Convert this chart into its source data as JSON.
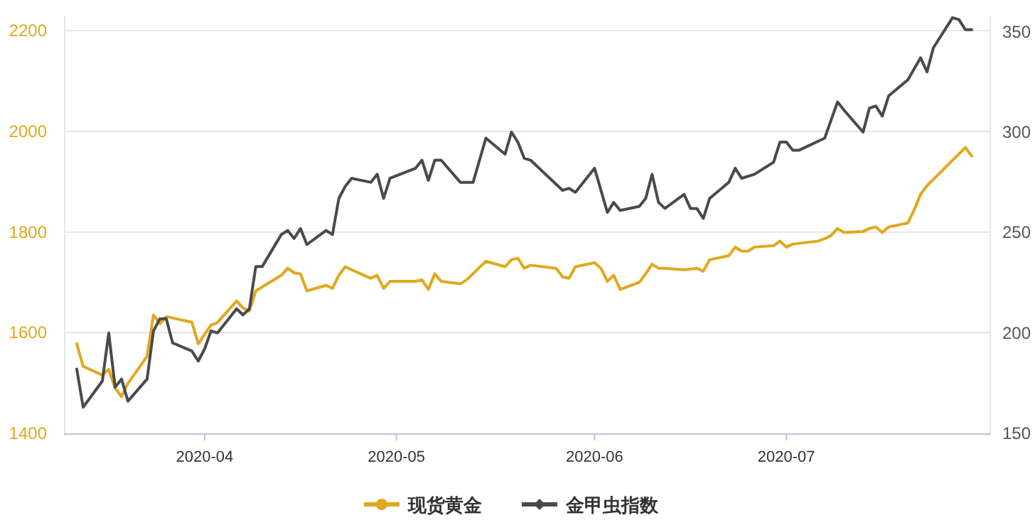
{
  "chart_data": {
    "type": "line",
    "legend": "bottom",
    "grid": "y",
    "xlim": [
      "2020-03-10",
      "2020-08-02"
    ],
    "xticks": [
      "2020-04",
      "2020-05",
      "2020-06",
      "2020-07"
    ],
    "ylim": [
      1400,
      2230
    ],
    "yticks": [
      1400,
      1600,
      1800,
      2000,
      2200
    ],
    "y2lim": [
      150,
      358
    ],
    "y2ticks": [
      150,
      200,
      250,
      300,
      350
    ],
    "series": [
      {
        "name": "现货黄金",
        "color": "#e0a81c",
        "x": [
          "2020-03-12",
          "2020-03-13",
          "2020-03-16",
          "2020-03-17",
          "2020-03-18",
          "2020-03-19",
          "2020-03-20",
          "2020-03-23",
          "2020-03-24",
          "2020-03-25",
          "2020-03-26",
          "2020-03-30",
          "2020-03-31",
          "2020-04-02",
          "2020-04-03",
          "2020-04-06",
          "2020-04-07",
          "2020-04-08",
          "2020-04-09",
          "2020-04-13",
          "2020-04-14",
          "2020-04-15",
          "2020-04-16",
          "2020-04-17",
          "2020-04-20",
          "2020-04-21",
          "2020-04-22",
          "2020-04-23",
          "2020-04-24",
          "2020-04-27",
          "2020-04-28",
          "2020-04-29",
          "2020-04-30",
          "2020-05-04",
          "2020-05-05",
          "2020-05-06",
          "2020-05-07",
          "2020-05-08",
          "2020-05-11",
          "2020-05-12",
          "2020-05-15",
          "2020-05-18",
          "2020-05-19",
          "2020-05-20",
          "2020-05-21",
          "2020-05-22",
          "2020-05-26",
          "2020-05-27",
          "2020-05-28",
          "2020-05-29",
          "2020-06-01",
          "2020-06-02",
          "2020-06-03",
          "2020-06-04",
          "2020-06-05",
          "2020-06-08",
          "2020-06-09",
          "2020-06-10",
          "2020-06-11",
          "2020-06-12",
          "2020-06-15",
          "2020-06-17",
          "2020-06-18",
          "2020-06-19",
          "2020-06-22",
          "2020-06-23",
          "2020-06-24",
          "2020-06-25",
          "2020-06-26",
          "2020-06-29",
          "2020-06-30",
          "2020-07-01",
          "2020-07-02",
          "2020-07-06",
          "2020-07-07",
          "2020-07-08",
          "2020-07-09",
          "2020-07-10",
          "2020-07-13",
          "2020-07-14",
          "2020-07-15",
          "2020-07-16",
          "2020-07-17",
          "2020-07-20",
          "2020-07-21",
          "2020-07-22",
          "2020-07-23",
          "2020-07-29",
          "2020-07-30"
        ],
        "values": [
          1578,
          1533,
          1516,
          1527,
          1490,
          1473,
          1499,
          1553,
          1635,
          1618,
          1632,
          1621,
          1578,
          1615,
          1620,
          1663,
          1649,
          1643,
          1683,
          1714,
          1728,
          1719,
          1717,
          1683,
          1694,
          1688,
          1714,
          1731,
          1725,
          1708,
          1714,
          1688,
          1702,
          1702,
          1705,
          1686,
          1717,
          1702,
          1697,
          1705,
          1742,
          1731,
          1745,
          1748,
          1728,
          1734,
          1728,
          1711,
          1708,
          1731,
          1739,
          1728,
          1702,
          1714,
          1686,
          1700,
          1717,
          1736,
          1728,
          1728,
          1725,
          1728,
          1722,
          1745,
          1753,
          1770,
          1762,
          1762,
          1770,
          1773,
          1782,
          1770,
          1776,
          1782,
          1787,
          1793,
          1807,
          1799,
          1801,
          1807,
          1810,
          1799,
          1810,
          1818,
          1844,
          1875,
          1892,
          1968,
          1951
        ]
      },
      {
        "name": "金甲虫指数",
        "color": "#4a4a4a",
        "axis": "y2",
        "x": [
          "2020-03-12",
          "2020-03-13",
          "2020-03-16",
          "2020-03-17",
          "2020-03-18",
          "2020-03-19",
          "2020-03-20",
          "2020-03-23",
          "2020-03-24",
          "2020-03-25",
          "2020-03-26",
          "2020-03-27",
          "2020-03-30",
          "2020-03-31",
          "2020-04-01",
          "2020-04-02",
          "2020-04-03",
          "2020-04-06",
          "2020-04-07",
          "2020-04-08",
          "2020-04-09",
          "2020-04-10",
          "2020-04-13",
          "2020-04-14",
          "2020-04-15",
          "2020-04-16",
          "2020-04-17",
          "2020-04-20",
          "2020-04-21",
          "2020-04-22",
          "2020-04-23",
          "2020-04-24",
          "2020-04-27",
          "2020-04-28",
          "2020-04-29",
          "2020-04-30",
          "2020-05-04",
          "2020-05-05",
          "2020-05-06",
          "2020-05-07",
          "2020-05-08",
          "2020-05-11",
          "2020-05-13",
          "2020-05-15",
          "2020-05-18",
          "2020-05-19",
          "2020-05-20",
          "2020-05-21",
          "2020-05-22",
          "2020-05-27",
          "2020-05-28",
          "2020-05-29",
          "2020-06-01",
          "2020-06-03",
          "2020-06-04",
          "2020-06-05",
          "2020-06-08",
          "2020-06-09",
          "2020-06-10",
          "2020-06-11",
          "2020-06-12",
          "2020-06-15",
          "2020-06-16",
          "2020-06-17",
          "2020-06-18",
          "2020-06-19",
          "2020-06-22",
          "2020-06-23",
          "2020-06-24",
          "2020-06-26",
          "2020-06-29",
          "2020-06-30",
          "2020-07-01",
          "2020-07-02",
          "2020-07-03",
          "2020-07-07",
          "2020-07-09",
          "2020-07-10",
          "2020-07-13",
          "2020-07-14",
          "2020-07-15",
          "2020-07-16",
          "2020-07-17",
          "2020-07-20",
          "2020-07-22",
          "2020-07-23",
          "2020-07-24",
          "2020-07-27",
          "2020-07-28",
          "2020-07-29",
          "2020-07-30"
        ],
        "values": [
          182,
          163,
          176,
          200,
          173,
          177,
          166,
          177,
          201,
          207,
          207,
          195,
          191,
          186,
          192,
          201,
          200,
          212,
          209,
          212,
          233,
          233,
          249,
          251,
          247,
          252,
          244,
          251,
          249,
          267,
          273,
          277,
          275,
          279,
          267,
          277,
          282,
          286,
          276,
          286,
          286,
          275,
          275,
          297,
          289,
          300,
          295,
          287,
          286,
          271,
          272,
          270,
          282,
          260,
          265,
          261,
          263,
          267,
          279,
          265,
          262,
          269,
          262,
          262,
          257,
          267,
          275,
          282,
          277,
          279,
          285,
          295,
          295,
          291,
          291,
          297,
          315,
          311,
          300,
          312,
          313,
          308,
          318,
          326,
          337,
          330,
          342,
          357,
          356,
          351,
          351
        ]
      }
    ]
  }
}
